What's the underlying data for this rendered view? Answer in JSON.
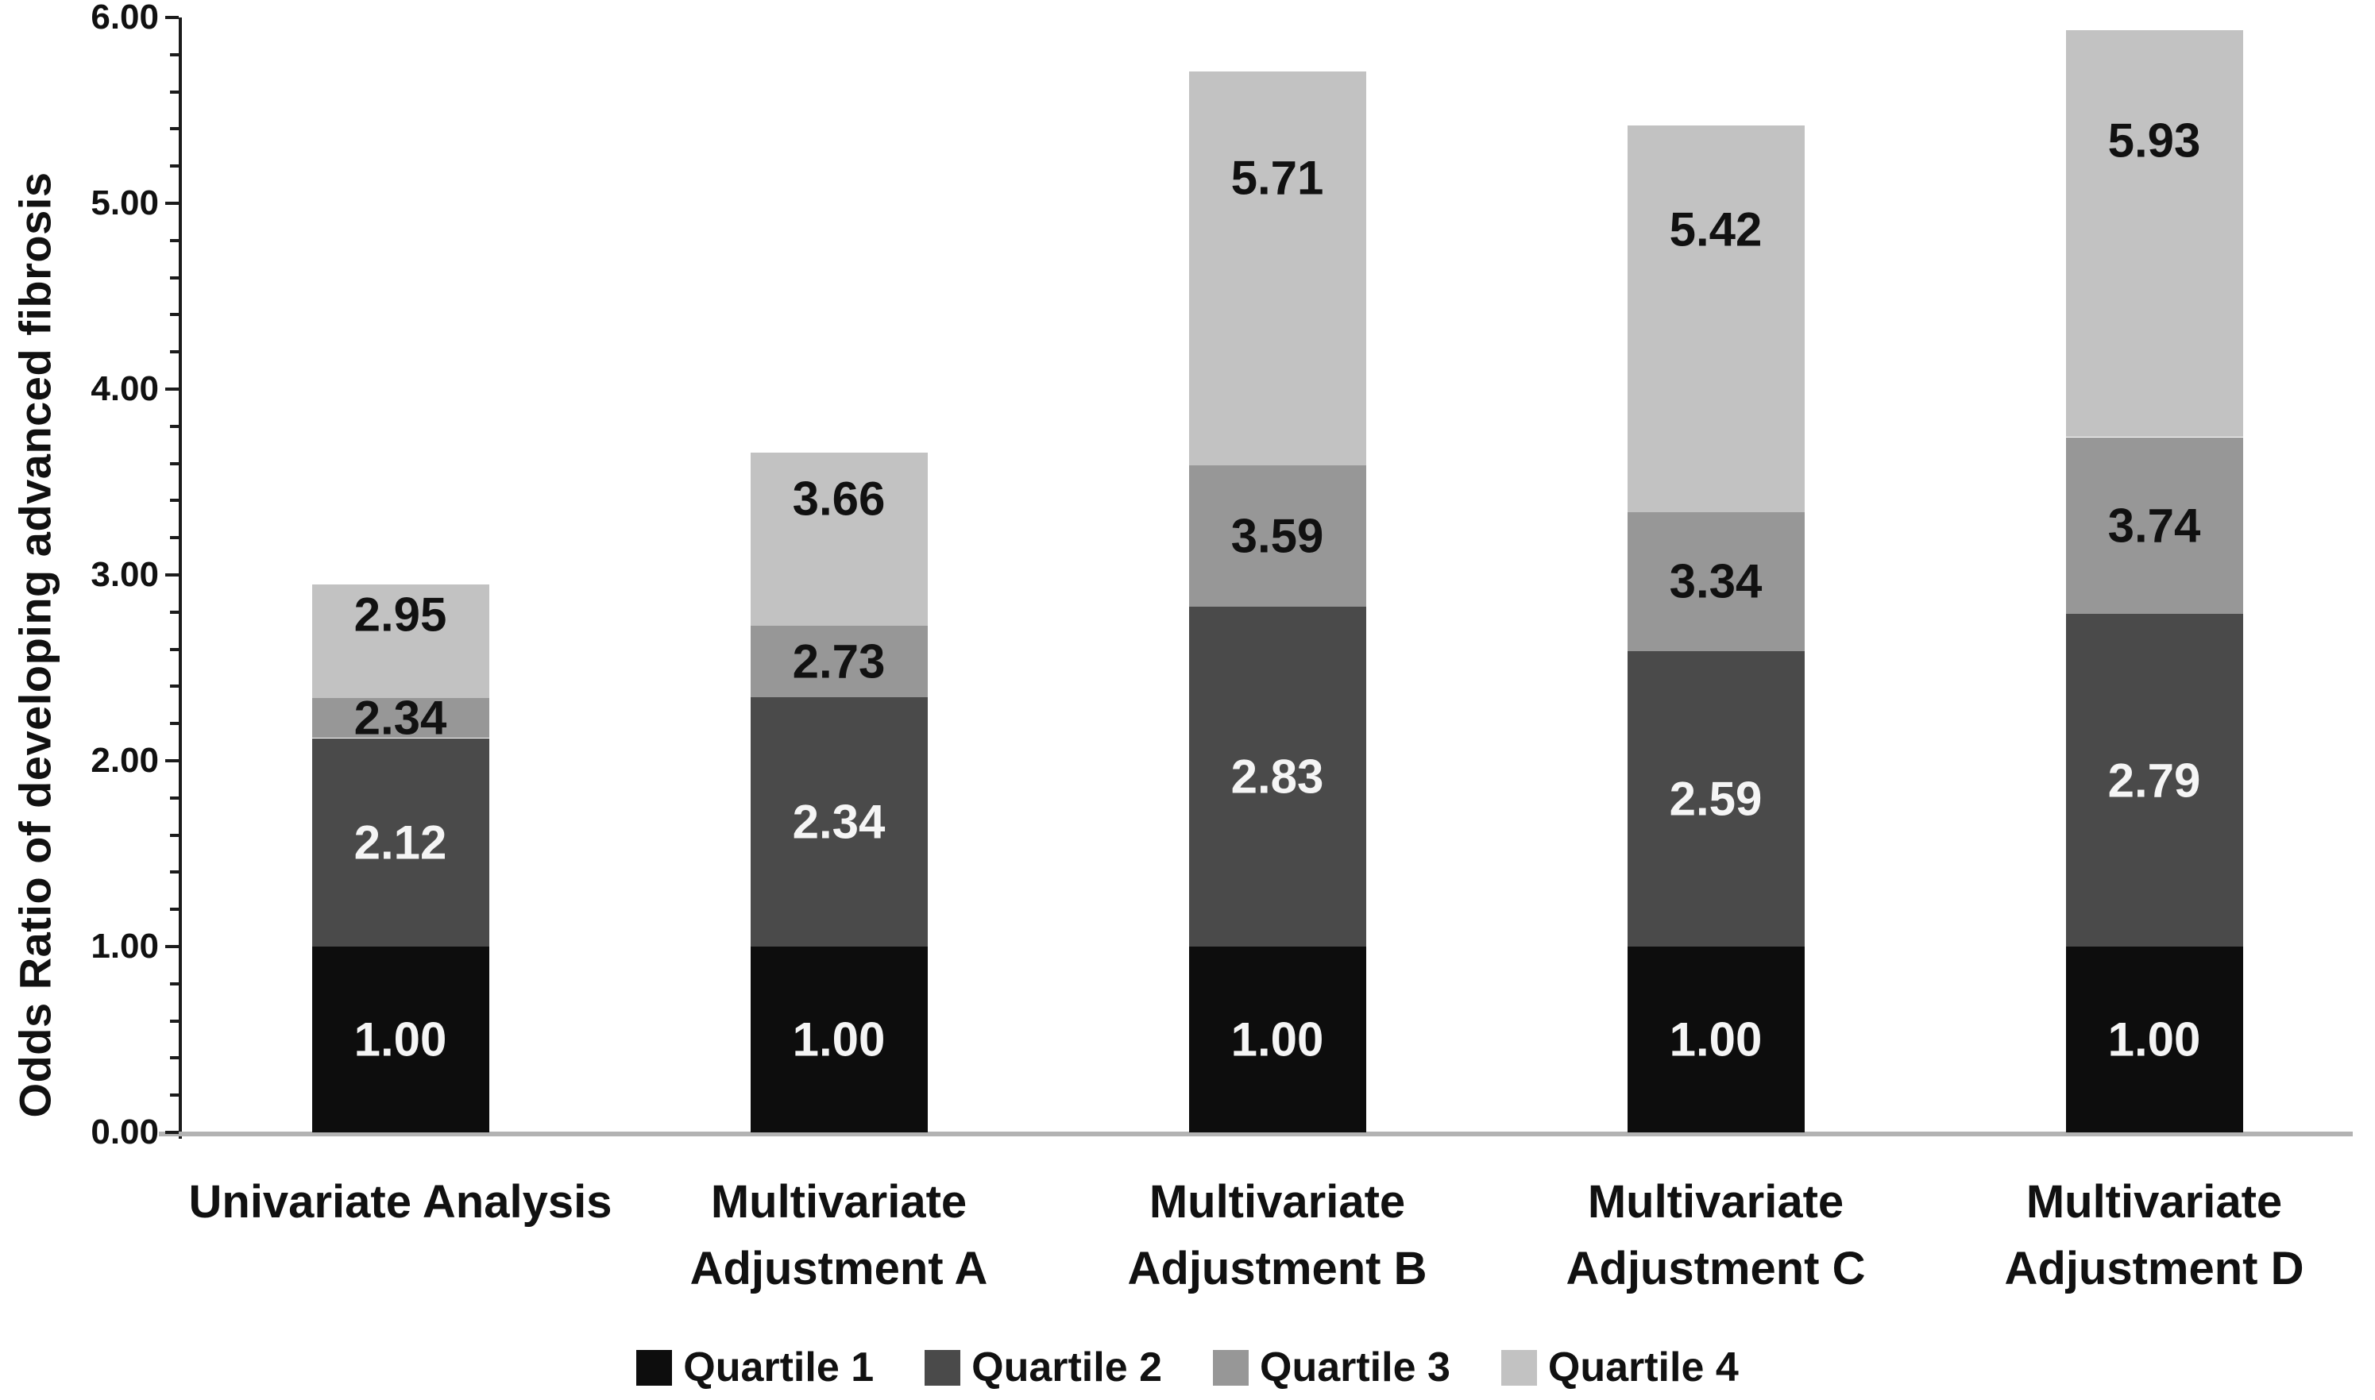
{
  "chart_data": {
    "type": "bar",
    "stacked": true,
    "title": "",
    "ylabel": "Odds Ratio of developing advanced fibrosis",
    "xlabel": "",
    "ylim": [
      0,
      6
    ],
    "ytick_step": 1,
    "ytick_minor_step": 0.2,
    "yticks": [
      "0.00",
      "1.00",
      "2.00",
      "3.00",
      "4.00",
      "5.00",
      "6.00"
    ],
    "grid": false,
    "legend_position": "bottom",
    "values_are_cumulative_segment_tops": true,
    "categories": [
      "Univariate Analysis",
      "Multivariate\nAdjustment A",
      "Multivariate\nAdjustment B",
      "Multivariate\nAdjustment C",
      "Multivariate\nAdjustment D"
    ],
    "series": [
      {
        "name": "Quartile 1",
        "color": "#0d0d0d",
        "label_color": "#f5f5f5",
        "values": [
          1.0,
          1.0,
          1.0,
          1.0,
          1.0
        ]
      },
      {
        "name": "Quartile 2",
        "color": "#4a4a4a",
        "label_color": "#f5f5f5",
        "values": [
          2.12,
          2.34,
          2.83,
          2.59,
          2.79
        ]
      },
      {
        "name": "Quartile 3",
        "color": "#979797",
        "label_color": "#111111",
        "values": [
          2.34,
          2.73,
          3.59,
          3.34,
          3.74
        ]
      },
      {
        "name": "Quartile 4",
        "color": "#c2c2c2",
        "label_color": "#111111",
        "values": [
          2.95,
          3.66,
          5.71,
          5.42,
          5.93
        ]
      }
    ],
    "colors": {
      "axis": "#1c1c1c",
      "baseline": "#b3b3b3",
      "text": "#111111",
      "background": "#ffffff"
    }
  }
}
